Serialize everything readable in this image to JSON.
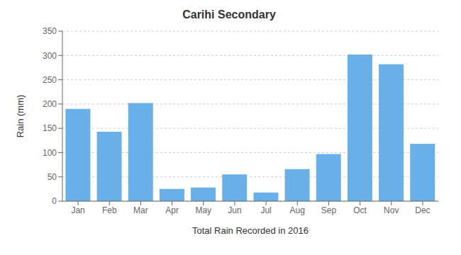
{
  "chart_data": {
    "type": "bar",
    "title": "Carihi Secondary",
    "xlabel": "Total Rain Recorded in 2016",
    "ylabel": "Rain (mm)",
    "categories": [
      "Jan",
      "Feb",
      "Mar",
      "Apr",
      "May",
      "Jun",
      "Jul",
      "Aug",
      "Sep",
      "Oct",
      "Nov",
      "Dec"
    ],
    "values": [
      190,
      143,
      202,
      25,
      28,
      55,
      18,
      66,
      97,
      302,
      282,
      118
    ],
    "color": "#6ab0e8",
    "ylim": [
      0,
      350
    ],
    "yticks": [
      0,
      50,
      100,
      150,
      200,
      250,
      300,
      350
    ],
    "grid": true
  }
}
